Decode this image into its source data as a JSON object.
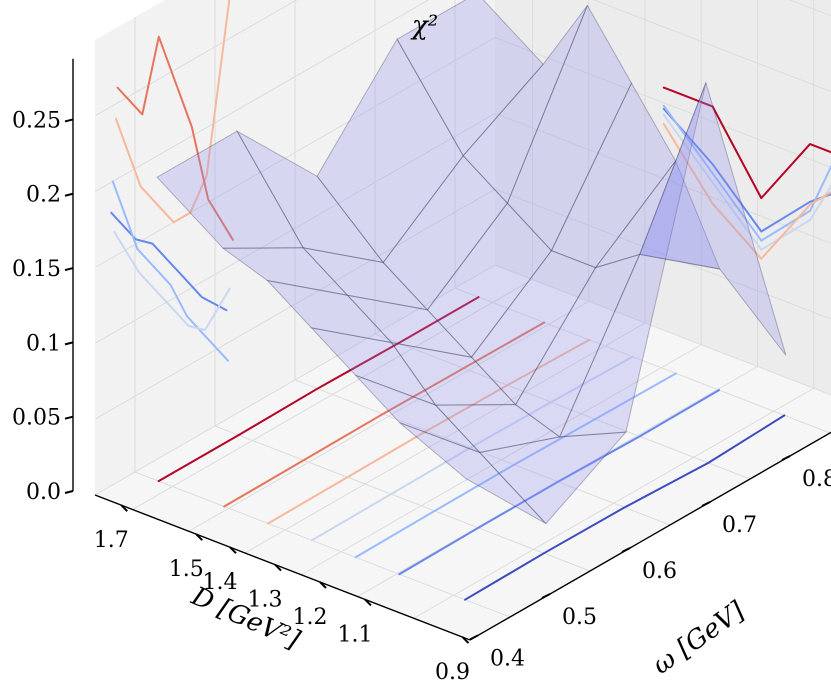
{
  "chart_data": {
    "type": "surface3d",
    "title": "",
    "zlabel": "χ²",
    "xlabel": "D [GeV²]",
    "ylabel": "ω [GeV]",
    "x_ticks": [
      "1.7",
      "1.5",
      "1.4",
      "1.3",
      "1.2",
      "1.1",
      "0.9"
    ],
    "y_ticks": [
      "0.4",
      "0.5",
      "0.6",
      "0.7",
      "0.8"
    ],
    "z_ticks": [
      "0.0",
      "0.05",
      "0.1",
      "0.15",
      "0.2",
      "0.25"
    ],
    "colormap": "coolwarm",
    "colors": {
      "surface": "#8f8ff0",
      "contour_low": "#3b4cc0",
      "contour_high": "#b40426"
    },
    "D": [
      1.7,
      1.55,
      1.45,
      1.35,
      1.25,
      1.15,
      1.0
    ],
    "omega": [
      0.45,
      0.55,
      0.65,
      0.75,
      0.85
    ],
    "chi2": [
      [
        0.2,
        0.2,
        0.14,
        0.2,
        0.2
      ],
      [
        0.17,
        0.14,
        0.1,
        0.14,
        0.17
      ],
      [
        0.16,
        0.12,
        0.08,
        0.12,
        0.22
      ],
      [
        0.14,
        0.1,
        0.06,
        0.1,
        0.18
      ],
      [
        0.12,
        0.07,
        0.04,
        0.1,
        0.14
      ],
      [
        0.1,
        0.05,
        0.03,
        0.12,
        0.08
      ],
      [
        0.08,
        0.02,
        0.05,
        0.25,
        0.04
      ]
    ]
  }
}
